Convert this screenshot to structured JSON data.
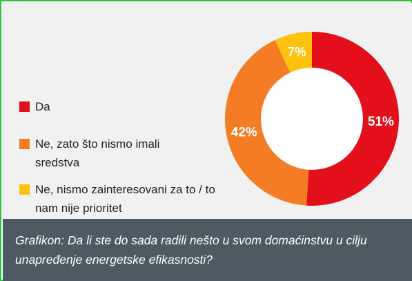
{
  "colors": {
    "da": "#e3101b",
    "ne_sredstva": "#f47c24",
    "ne_zainteresovani": "#fcc20e",
    "caption_bg": "#4e5a62",
    "background": "#f1f1f1"
  },
  "legend": {
    "items": [
      {
        "label": "Da",
        "color": "#e3101b"
      },
      {
        "label": "Ne, zato što nismo imali sredstva",
        "color": "#f47c24"
      },
      {
        "label": "Ne, nismo zainteresovani za to / to nam nije prioritet",
        "color": "#fcc20e"
      }
    ]
  },
  "caption": {
    "text": "Grafikon: Da li ste do sada radili nešto u svom domaćinstvu u cilju unapređenje energetske efikasnosti?"
  },
  "chart_data": {
    "type": "pie",
    "variant": "donut",
    "categories": [
      "Da",
      "Ne, zato što nismo imali sredstva",
      "Ne, nismo zainteresovani za to / to nam nije prioritet"
    ],
    "values": [
      51,
      42,
      7
    ],
    "data_labels": [
      "51%",
      "42%",
      "7%"
    ],
    "colors": [
      "#e3101b",
      "#f47c24",
      "#fcc20e"
    ],
    "start": "top",
    "direction": "clockwise",
    "legend_position": "left"
  }
}
